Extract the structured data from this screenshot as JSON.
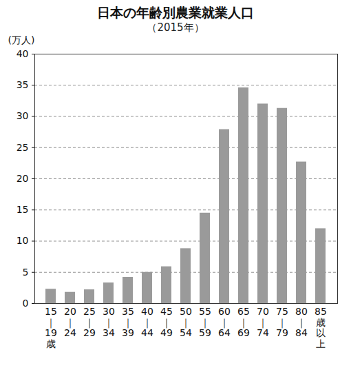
{
  "chart_data": {
    "type": "bar",
    "title": "日本の年齢別農業就業人口",
    "subtitle": "（2015年）",
    "y_label": "(万人)",
    "categories": [
      "15｜19歳",
      "20｜24",
      "25｜29",
      "30｜34",
      "35｜39",
      "40｜44",
      "45｜49",
      "50｜54",
      "55｜59",
      "60｜64",
      "65｜69",
      "70｜74",
      "75｜79",
      "80｜84",
      "85歳以上"
    ],
    "values": [
      2.3,
      1.8,
      2.2,
      3.3,
      4.2,
      5.0,
      5.9,
      8.8,
      14.5,
      27.9,
      34.6,
      32.0,
      31.3,
      22.7,
      12.0
    ],
    "color": "#9a9a9a",
    "ylim": [
      0,
      40
    ],
    "yticks": [
      0,
      5,
      10,
      15,
      20,
      25,
      30,
      35,
      40
    ],
    "grid": true
  }
}
